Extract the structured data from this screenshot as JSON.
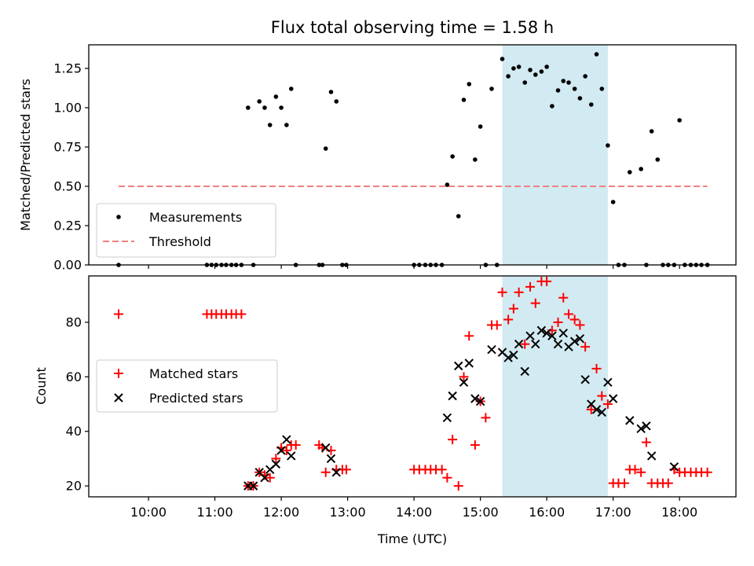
{
  "chart_data": [
    {
      "type": "scatter",
      "title": "Flux total observing time = 1.58 h",
      "xlabel": "",
      "ylabel": "Matched/Predicted stars",
      "xlim": [
        9.1,
        18.85
      ],
      "ylim": [
        0.0,
        1.4
      ],
      "yticks": [
        0.0,
        0.25,
        0.5,
        0.75,
        1.0,
        1.25
      ],
      "ytick_labels": [
        "0.00",
        "0.25",
        "0.50",
        "0.75",
        "1.00",
        "1.25"
      ],
      "highlight_span": [
        15.33,
        16.92
      ],
      "highlight_color": "#add8e6",
      "series": [
        {
          "name": "Measurements",
          "marker": "dot",
          "color": "#000000",
          "x": [
            9.55,
            10.88,
            10.95,
            11.02,
            11.1,
            11.17,
            11.25,
            11.32,
            11.4,
            11.5,
            11.58,
            11.67,
            11.75,
            11.83,
            11.92,
            12.0,
            12.08,
            12.15,
            12.22,
            12.57,
            12.62,
            12.67,
            12.75,
            12.83,
            12.92,
            12.98,
            14.0,
            14.08,
            14.17,
            14.25,
            14.33,
            14.42,
            14.5,
            14.58,
            14.67,
            14.75,
            14.83,
            14.92,
            15.0,
            15.08,
            15.17,
            15.25,
            15.33,
            15.42,
            15.5,
            15.58,
            15.67,
            15.75,
            15.83,
            15.92,
            16.0,
            16.08,
            16.17,
            16.25,
            16.33,
            16.42,
            16.5,
            16.58,
            16.67,
            16.75,
            16.83,
            16.92,
            17.0,
            17.08,
            17.17,
            17.25,
            17.42,
            17.5,
            17.58,
            17.67,
            17.75,
            17.83,
            17.92,
            18.0,
            18.08,
            18.17,
            18.25,
            18.33,
            18.42
          ],
          "y": [
            0.0,
            0.0,
            0.0,
            0.0,
            0.0,
            0.0,
            0.0,
            0.0,
            0.0,
            1.0,
            0.0,
            1.04,
            1.0,
            0.89,
            1.07,
            1.0,
            0.89,
            1.12,
            0.0,
            0.0,
            0.0,
            0.74,
            1.1,
            1.04,
            0.0,
            0.0,
            0.0,
            0.0,
            0.0,
            0.0,
            0.0,
            0.0,
            0.51,
            0.69,
            0.31,
            1.05,
            1.15,
            0.67,
            0.88,
            0.0,
            1.12,
            0.0,
            1.31,
            1.2,
            1.25,
            1.26,
            1.16,
            1.24,
            1.21,
            1.23,
            1.26,
            1.01,
            1.11,
            1.17,
            1.16,
            1.12,
            1.06,
            1.2,
            1.02,
            1.34,
            1.12,
            0.76,
            0.4,
            0.0,
            0.0,
            0.59,
            0.61,
            0.0,
            0.85,
            0.67,
            0.0,
            0.0,
            0.0,
            0.92,
            0.0,
            0.0,
            0.0,
            0.0,
            0.0
          ]
        },
        {
          "name": "Threshold",
          "type": "line",
          "style": "dashed",
          "color": "#f08080",
          "x": [
            9.55,
            18.42
          ],
          "y": [
            0.5,
            0.5
          ]
        }
      ],
      "legend_position": "lower-left"
    },
    {
      "type": "scatter",
      "title": "",
      "xlabel": "Time (UTC)",
      "ylabel": "Count",
      "xlim": [
        9.1,
        18.85
      ],
      "ylim": [
        16,
        97
      ],
      "yticks": [
        20,
        40,
        60,
        80
      ],
      "ytick_labels": [
        "20",
        "40",
        "60",
        "80"
      ],
      "xticks": [
        10,
        11,
        12,
        13,
        14,
        15,
        16,
        17,
        18
      ],
      "xtick_labels": [
        "10:00",
        "11:00",
        "12:00",
        "13:00",
        "14:00",
        "15:00",
        "16:00",
        "17:00",
        "18:00"
      ],
      "highlight_span": [
        15.33,
        16.92
      ],
      "highlight_color": "#add8e6",
      "series": [
        {
          "name": "Matched stars",
          "marker": "plus",
          "color": "#ff0000",
          "x": [
            9.55,
            10.88,
            10.95,
            11.02,
            11.1,
            11.17,
            11.25,
            11.32,
            11.4,
            11.5,
            11.58,
            11.67,
            11.75,
            11.83,
            11.92,
            12.0,
            12.08,
            12.15,
            12.22,
            12.57,
            12.62,
            12.67,
            12.75,
            12.83,
            12.92,
            12.98,
            14.0,
            14.08,
            14.17,
            14.25,
            14.33,
            14.42,
            14.5,
            14.58,
            14.67,
            14.75,
            14.83,
            14.92,
            15.0,
            15.08,
            15.17,
            15.25,
            15.33,
            15.42,
            15.5,
            15.58,
            15.67,
            15.75,
            15.83,
            15.92,
            16.0,
            16.08,
            16.17,
            16.25,
            16.33,
            16.42,
            16.5,
            16.58,
            16.67,
            16.75,
            16.83,
            16.92,
            17.0,
            17.08,
            17.17,
            17.25,
            17.33,
            17.42,
            17.5,
            17.58,
            17.67,
            17.75,
            17.83,
            17.92,
            18.0,
            18.08,
            18.17,
            18.25,
            18.33,
            18.42
          ],
          "y": [
            83,
            83,
            83,
            83,
            83,
            83,
            83,
            83,
            83,
            20,
            20,
            25,
            24,
            23,
            30,
            34,
            33,
            35,
            35,
            35,
            34,
            25,
            33,
            26,
            26,
            26,
            26,
            26,
            26,
            26,
            26,
            26,
            23,
            37,
            20,
            60,
            75,
            35,
            51,
            45,
            79,
            79,
            91,
            81,
            85,
            91,
            72,
            93,
            87,
            95,
            95,
            77,
            80,
            89,
            83,
            81,
            79,
            71,
            48,
            63,
            53,
            50,
            21,
            21,
            21,
            26,
            26,
            25,
            36,
            21,
            21,
            21,
            21,
            26,
            25,
            25,
            25,
            25,
            25,
            25
          ]
        },
        {
          "name": "Predicted stars",
          "marker": "x",
          "color": "#000000",
          "x": [
            11.5,
            11.58,
            11.67,
            11.75,
            11.83,
            11.92,
            12.0,
            12.08,
            12.15,
            12.67,
            12.75,
            12.83,
            14.5,
            14.58,
            14.67,
            14.75,
            14.83,
            14.92,
            15.0,
            15.17,
            15.33,
            15.42,
            15.5,
            15.58,
            15.67,
            15.75,
            15.83,
            15.92,
            16.0,
            16.08,
            16.17,
            16.25,
            16.33,
            16.42,
            16.5,
            16.58,
            16.67,
            16.75,
            16.83,
            16.92,
            17.0,
            17.25,
            17.42,
            17.5,
            17.58,
            17.92
          ],
          "y": [
            20,
            20,
            25,
            23,
            26,
            28,
            33,
            37,
            31,
            34,
            30,
            25,
            45,
            53,
            64,
            58,
            65,
            52,
            51,
            70,
            69,
            67,
            68,
            72,
            62,
            75,
            72,
            77,
            76,
            75,
            72,
            76,
            71,
            73,
            74,
            59,
            50,
            48,
            47,
            58,
            52,
            44,
            41,
            42,
            31,
            27
          ]
        }
      ],
      "legend_position": "center-left"
    }
  ]
}
